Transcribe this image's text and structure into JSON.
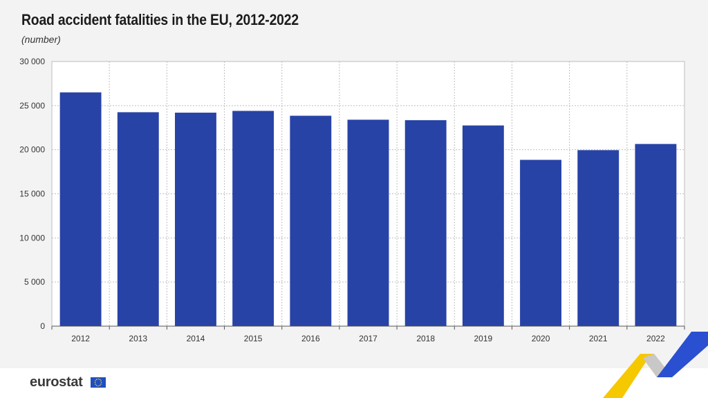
{
  "header": {
    "title": "Road accident fatalities in the EU, 2012-2022",
    "subtitle": "(number)"
  },
  "footer": {
    "logo_text": "eurostat",
    "logo_icon": "eu-flag-icon"
  },
  "colors": {
    "bar": "#2843a6",
    "grid": "#bdbdbd",
    "plot_background": "#ffffff",
    "page_background": "#f3f3f3",
    "accent_yellow": "#f6c800",
    "accent_blue": "#2a4fd0"
  },
  "chart_data": {
    "type": "bar",
    "title": "Road accident fatalities in the EU, 2012-2022",
    "subtitle": "(number)",
    "categories": [
      "2012",
      "2013",
      "2014",
      "2015",
      "2016",
      "2017",
      "2018",
      "2019",
      "2020",
      "2021",
      "2022"
    ],
    "values": [
      26500,
      24250,
      24200,
      24400,
      23850,
      23400,
      23350,
      22750,
      18850,
      19950,
      20650
    ],
    "ylim": [
      0,
      30000
    ],
    "yticks": [
      0,
      5000,
      10000,
      15000,
      20000,
      25000,
      30000
    ],
    "ytick_labels": [
      "0",
      "5 000",
      "10 000",
      "15 000",
      "20 000",
      "25 000",
      "30 000"
    ],
    "xlabel": "",
    "ylabel": "",
    "grid": true,
    "legend": "none"
  }
}
